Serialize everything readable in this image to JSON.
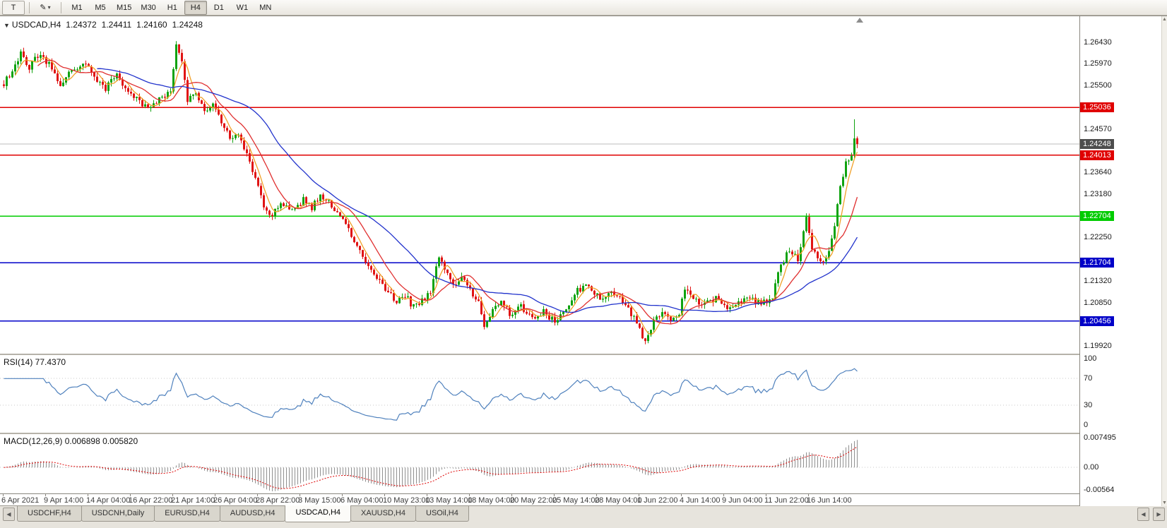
{
  "icons": {
    "chart_menu": "▼",
    "pencil": "✎",
    "caret_down": "▾",
    "scroll_up": "▲",
    "scroll_down": "▼",
    "tab_scroll_left": "◀",
    "tab_scroll_right": "▶"
  },
  "toolbar": {
    "text_tool_label": "T",
    "timeframes": [
      "M1",
      "M5",
      "M15",
      "M30",
      "H1",
      "H4",
      "D1",
      "W1",
      "MN"
    ],
    "active_timeframe": "H4"
  },
  "chart": {
    "title": {
      "symbol": "USDCAD,H4",
      "open": "1.24372",
      "high": "1.24411",
      "low": "1.24160",
      "close": "1.24248"
    }
  },
  "chart_data": {
    "type": "candlestick",
    "symbol": "USDCAD",
    "timeframe": "H4",
    "title": "USDCAD,H4 1.24372 1.24411 1.24160 1.24248",
    "candle_count": 303,
    "candles_per_time_label": 15,
    "time_labels": [
      "6 Apr 2021",
      "9 Apr 14:00",
      "14 Apr 04:00",
      "16 Apr 22:00",
      "21 Apr 14:00",
      "26 Apr 04:00",
      "28 Apr 22:00",
      "3 May 15:00",
      "6 May 04:00",
      "10 May 23:00",
      "13 May 14:00",
      "18 May 04:00",
      "20 May 22:00",
      "25 May 14:00",
      "28 May 04:00",
      "1 Jun 22:00",
      "4 Jun 14:00",
      "9 Jun 04:00",
      "11 Jun 22:00",
      "16 Jun 14:00"
    ],
    "price_axis_ticks": [
      "1.26430",
      "1.25970",
      "1.25500",
      "1.24570",
      "1.23640",
      "1.23180",
      "1.22250",
      "1.21320",
      "1.20850",
      "1.19920"
    ],
    "price_axis_range": {
      "max": 1.2643,
      "min": 1.1992
    },
    "horizontal_levels": [
      {
        "price": 1.25036,
        "label": "1.25036",
        "color": "#e00000"
      },
      {
        "price": 1.24013,
        "label": "1.24013",
        "color": "#e00000"
      },
      {
        "price": 1.22704,
        "label": "1.22704",
        "color": "#00cc00"
      },
      {
        "price": 1.21704,
        "label": "1.21704",
        "color": "#0000c8"
      },
      {
        "price": 1.20456,
        "label": "1.20456",
        "color": "#0000c8"
      }
    ],
    "current_price": {
      "value": 1.24248,
      "label": "1.24248",
      "badge_color": "#4d4d4d",
      "line_color": "#bdbdbd"
    },
    "ohlc_current": {
      "open": 1.24372,
      "high": 1.24411,
      "low": 1.2416,
      "close": 1.24248
    },
    "colors": {
      "bull": "#0fa30f",
      "bear": "#e01414"
    },
    "moving_averages": [
      {
        "period": 5,
        "color": "#f0a028"
      },
      {
        "period": 13,
        "color": "#e03030"
      },
      {
        "period": 34,
        "color": "#2233cc"
      }
    ],
    "path_anchors": [
      [
        0,
        1.2555
      ],
      [
        3,
        1.2585
      ],
      [
        6,
        1.262
      ],
      [
        9,
        1.259
      ],
      [
        12,
        1.2615
      ],
      [
        16,
        1.2595
      ],
      [
        20,
        1.2555
      ],
      [
        24,
        1.258
      ],
      [
        28,
        1.26
      ],
      [
        32,
        1.257
      ],
      [
        36,
        1.2545
      ],
      [
        40,
        1.257
      ],
      [
        45,
        1.253
      ],
      [
        50,
        1.2505
      ],
      [
        55,
        1.252
      ],
      [
        59,
        1.254
      ],
      [
        61,
        1.2635
      ],
      [
        63,
        1.2605
      ],
      [
        65,
        1.2515
      ],
      [
        68,
        1.254
      ],
      [
        71,
        1.2495
      ],
      [
        74,
        1.251
      ],
      [
        77,
        1.2475
      ],
      [
        80,
        1.2435
      ],
      [
        83,
        1.245
      ],
      [
        86,
        1.2405
      ],
      [
        89,
        1.2355
      ],
      [
        92,
        1.2295
      ],
      [
        95,
        1.227
      ],
      [
        98,
        1.23
      ],
      [
        102,
        1.228
      ],
      [
        106,
        1.2305
      ],
      [
        109,
        1.229
      ],
      [
        112,
        1.231
      ],
      [
        115,
        1.23
      ],
      [
        118,
        1.228
      ],
      [
        121,
        1.2255
      ],
      [
        124,
        1.222
      ],
      [
        127,
        1.2185
      ],
      [
        130,
        1.216
      ],
      [
        133,
        1.213
      ],
      [
        136,
        1.2105
      ],
      [
        139,
        1.2085
      ],
      [
        142,
        1.21
      ],
      [
        145,
        1.2075
      ],
      [
        148,
        1.209
      ],
      [
        151,
        1.211
      ],
      [
        154,
        1.2185
      ],
      [
        156,
        1.215
      ],
      [
        159,
        1.2125
      ],
      [
        162,
        1.214
      ],
      [
        165,
        1.211
      ],
      [
        168,
        1.2085
      ],
      [
        170,
        1.2035
      ],
      [
        173,
        1.207
      ],
      [
        176,
        1.209
      ],
      [
        179,
        1.206
      ],
      [
        183,
        1.2075
      ],
      [
        187,
        1.205
      ],
      [
        191,
        1.2065
      ],
      [
        195,
        1.2045
      ],
      [
        199,
        1.207
      ],
      [
        203,
        1.211
      ],
      [
        207,
        1.212
      ],
      [
        211,
        1.2095
      ],
      [
        215,
        1.211
      ],
      [
        219,
        1.2085
      ],
      [
        222,
        1.206
      ],
      [
        225,
        1.203
      ],
      [
        227,
        1.2
      ],
      [
        230,
        1.2045
      ],
      [
        233,
        1.206
      ],
      [
        236,
        1.205
      ],
      [
        239,
        1.2065
      ],
      [
        241,
        1.2115
      ],
      [
        244,
        1.209
      ],
      [
        248,
        1.208
      ],
      [
        252,
        1.2095
      ],
      [
        256,
        1.2075
      ],
      [
        260,
        1.2085
      ],
      [
        264,
        1.2095
      ],
      [
        268,
        1.208
      ],
      [
        272,
        1.21
      ],
      [
        275,
        1.2165
      ],
      [
        278,
        1.22
      ],
      [
        281,
        1.2175
      ],
      [
        284,
        1.2265
      ],
      [
        286,
        1.2195
      ],
      [
        289,
        1.2175
      ],
      [
        292,
        1.219
      ],
      [
        294,
        1.225
      ],
      [
        296,
        1.233
      ],
      [
        298,
        1.2385
      ],
      [
        300,
        1.2405
      ],
      [
        301,
        1.2437
      ],
      [
        302,
        1.24248
      ]
    ],
    "last_candles": [
      {
        "o": 1.2403,
        "h": 1.2478,
        "l": 1.2395,
        "c": 1.2437
      },
      {
        "o": 1.24372,
        "h": 1.24411,
        "l": 1.2416,
        "c": 1.24248
      }
    ],
    "indicators": {
      "rsi": {
        "display": "RSI(14) 77.4370",
        "period": 14,
        "value": 77.437,
        "axis_ticks": [
          "100",
          "70",
          "30",
          "0"
        ],
        "guide_levels": [
          70,
          30
        ],
        "line_color": "#4f81bd"
      },
      "macd": {
        "display": "MACD(12,26,9) 0.006898 0.005820",
        "fast": 12,
        "slow": 26,
        "signal_period": 9,
        "macd_value": 0.006898,
        "signal_value": 0.00582,
        "axis_ticks": [
          [
            0.007495,
            "0.007495"
          ],
          [
            0,
            "0.00"
          ],
          [
            -0.00564,
            "-0.00564"
          ]
        ],
        "hist_color": "#909090",
        "signal_color": "#dd0000"
      }
    }
  },
  "tabbar": {
    "tabs": [
      "USDCHF,H4",
      "USDCNH,Daily",
      "EURUSD,H4",
      "AUDUSD,H4",
      "USDCAD,H4",
      "XAUUSD,H4",
      "USOil,H4"
    ],
    "active_tab": "USDCAD,H4"
  }
}
